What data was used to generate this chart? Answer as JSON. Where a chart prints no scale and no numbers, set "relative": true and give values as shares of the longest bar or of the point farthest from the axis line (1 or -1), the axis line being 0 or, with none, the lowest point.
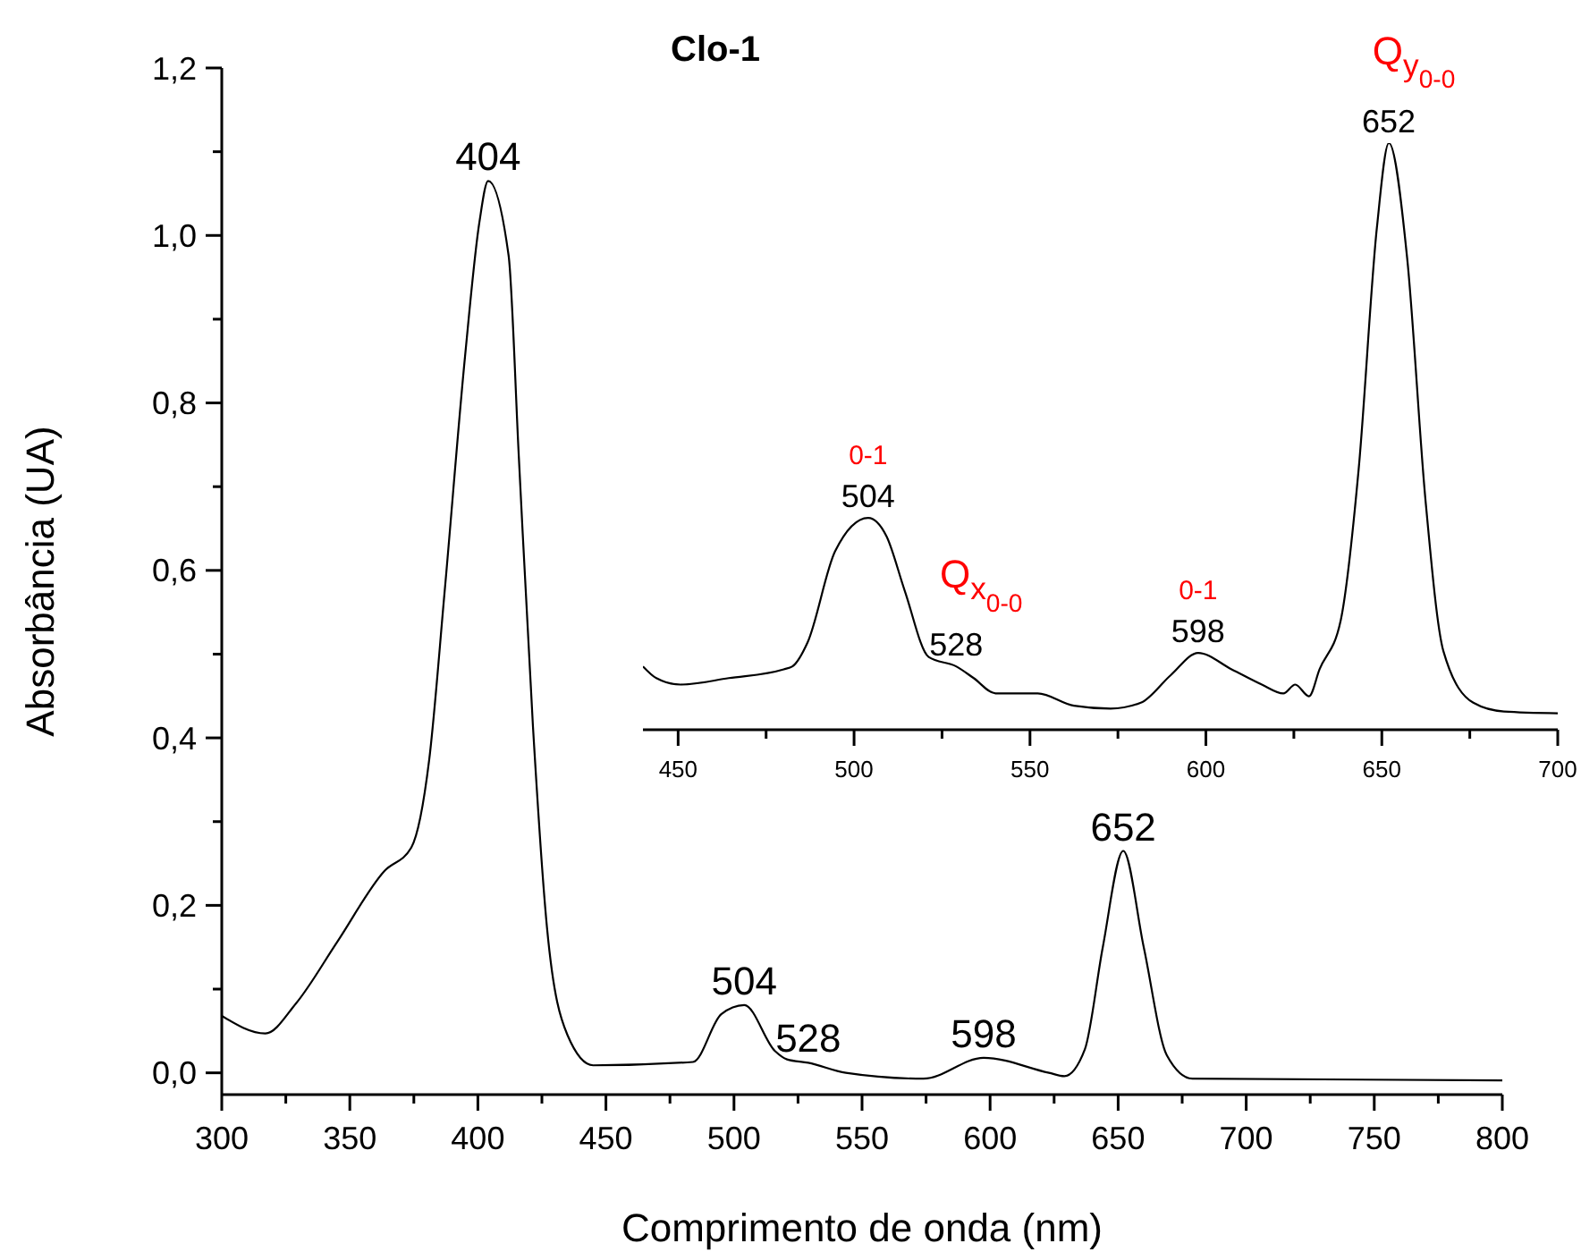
{
  "chart_data": [
    {
      "type": "line",
      "title": "Clo-1",
      "xlabel": "Comprimento de onda (nm)",
      "ylabel": "Absorbância (UA)",
      "x": [
        300,
        317,
        329,
        345,
        363.5,
        374,
        381,
        387,
        395,
        400.6,
        404,
        412,
        416,
        421.5,
        427,
        435,
        445,
        484,
        495,
        504,
        516,
        520.7,
        529,
        543.7,
        574,
        597.5,
        623,
        629,
        637,
        644,
        652,
        660,
        669,
        679,
        800
      ],
      "series": [
        {
          "color": "#000000",
          "values": [
            0.068,
            0.047,
            0.083,
            0.156,
            0.241,
            0.269,
            0.374,
            0.574,
            0.856,
            1.016,
            1.065,
            0.976,
            0.735,
            0.414,
            0.173,
            0.045,
            0.009,
            0.013,
            0.07,
            0.081,
            0.026,
            0.016,
            0.012,
            0.0,
            -0.007,
            0.018,
            0.0,
            -0.004,
            0.028,
            0.15,
            0.265,
            0.15,
            0.021,
            -0.007,
            -0.009
          ]
        }
      ],
      "xlim": [
        300,
        800
      ],
      "ylim": [
        -0.026,
        1.2
      ],
      "xticks": [
        300,
        {
          "value": 325,
          "label": null
        },
        350,
        {
          "value": 375,
          "label": null
        },
        400,
        {
          "value": 425,
          "label": null
        },
        450,
        {
          "value": 475,
          "label": null
        },
        500,
        {
          "value": 525,
          "label": null
        },
        550,
        {
          "value": 575,
          "label": null
        },
        600,
        {
          "value": 625,
          "label": null
        },
        650,
        {
          "value": 675,
          "label": null
        },
        700,
        {
          "value": 725,
          "label": null
        },
        750,
        {
          "value": 775,
          "label": null
        },
        800
      ],
      "yticks": [
        {
          "value": 0,
          "label": "0,0"
        },
        {
          "value": 0.1,
          "label": null
        },
        {
          "value": 0.2,
          "label": "0,2"
        },
        {
          "value": 0.3,
          "label": null
        },
        {
          "value": 0.4,
          "label": "0,4"
        },
        {
          "value": 0.5,
          "label": null
        },
        {
          "value": 0.6,
          "label": "0,6"
        },
        {
          "value": 0.7,
          "label": null
        },
        {
          "value": 0.8,
          "label": "0,8"
        },
        {
          "value": 0.9,
          "label": null
        },
        {
          "value": 1.0,
          "label": "1,0"
        },
        {
          "value": 1.1,
          "label": null
        },
        {
          "value": 1.2,
          "label": "1,2"
        }
      ],
      "grid": false,
      "legend": false,
      "marker": "none",
      "line_style": "solid",
      "annotations": [
        {
          "text": "404",
          "x": 404,
          "y": 1.065
        },
        {
          "text": "504",
          "x": 504,
          "y": 0.081
        },
        {
          "text": "528",
          "x": 529,
          "y": 0.012
        },
        {
          "text": "598",
          "x": 597.5,
          "y": 0.018
        },
        {
          "text": "652",
          "x": 652,
          "y": 0.265
        }
      ]
    },
    {
      "type": "line",
      "relative": true,
      "x": [
        440,
        443.8,
        450.7,
        464.4,
        480,
        482.5,
        486.8,
        494.6,
        504,
        509.2,
        514.4,
        521.2,
        529,
        534,
        540.2,
        552.2,
        562.5,
        572.9,
        581.5,
        590,
        597.8,
        607.3,
        615.9,
        622,
        625.4,
        629.3,
        632.3,
        638.3,
        643.4,
        648.6,
        652,
        657.2,
        662.4,
        667.5,
        676,
        684.7,
        700
      ],
      "series": [
        {
          "color": "#000000",
          "values": [
            0.108,
            0.088,
            0.077,
            0.088,
            0.103,
            0.108,
            0.149,
            0.304,
            0.361,
            0.33,
            0.237,
            0.124,
            0.108,
            0.088,
            0.062,
            0.062,
            0.041,
            0.036,
            0.046,
            0.093,
            0.131,
            0.103,
            0.077,
            0.062,
            0.077,
            0.057,
            0.103,
            0.186,
            0.443,
            0.856,
            1.0,
            0.804,
            0.392,
            0.134,
            0.046,
            0.031,
            0.028
          ]
        }
      ],
      "xlim": [
        440,
        700
      ],
      "xticks": [
        450,
        {
          "value": 475,
          "label": null
        },
        500,
        {
          "value": 525,
          "label": null
        },
        550,
        {
          "value": 575,
          "label": null
        },
        600,
        {
          "value": 625,
          "label": null
        },
        650,
        {
          "value": 675,
          "label": null
        },
        700
      ],
      "tick_labels": "x",
      "grid": false,
      "legend": false,
      "marker": "none",
      "line_style": "solid",
      "annotations": [
        {
          "text": "504",
          "x": 504,
          "y": 0.361
        },
        {
          "text": "0-1",
          "x": 504,
          "y": 0.361
        },
        {
          "text": "528",
          "x": 529,
          "y": 0.108
        },
        {
          "text": "Q$_{x}$$_{0-0}$",
          "x": 529,
          "y": 0.108
        },
        {
          "text": "598",
          "x": 597.8,
          "y": 0.131
        },
        {
          "text": "0-1",
          "x": 597.8,
          "y": 0.131
        },
        {
          "text": "652",
          "x": 652,
          "y": 1.0
        },
        {
          "text": "Q$_{y}$$_{0-0}$",
          "x": 652,
          "y": 1.0
        }
      ]
    }
  ]
}
